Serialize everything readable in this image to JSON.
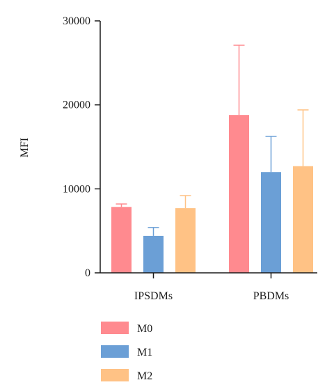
{
  "chart_data": {
    "type": "bar",
    "title": "",
    "xlabel": "",
    "ylabel": "MFI",
    "ylim": [
      0,
      30000
    ],
    "yticks": [
      0,
      10000,
      20000,
      30000
    ],
    "grid": false,
    "legend_position": "bottom-left",
    "categories": [
      "IPSDMs",
      "PBDMs"
    ],
    "series": [
      {
        "name": "M0",
        "color": "#ff8a8f",
        "values": [
          7850,
          18800
        ],
        "errors": [
          350,
          8300
        ]
      },
      {
        "name": "M1",
        "color": "#6b9fd6",
        "values": [
          4400,
          12000
        ],
        "errors": [
          1000,
          4250
        ]
      },
      {
        "name": "M2",
        "color": "#ffc285",
        "values": [
          7700,
          12700
        ],
        "errors": [
          1500,
          6700
        ]
      }
    ]
  }
}
